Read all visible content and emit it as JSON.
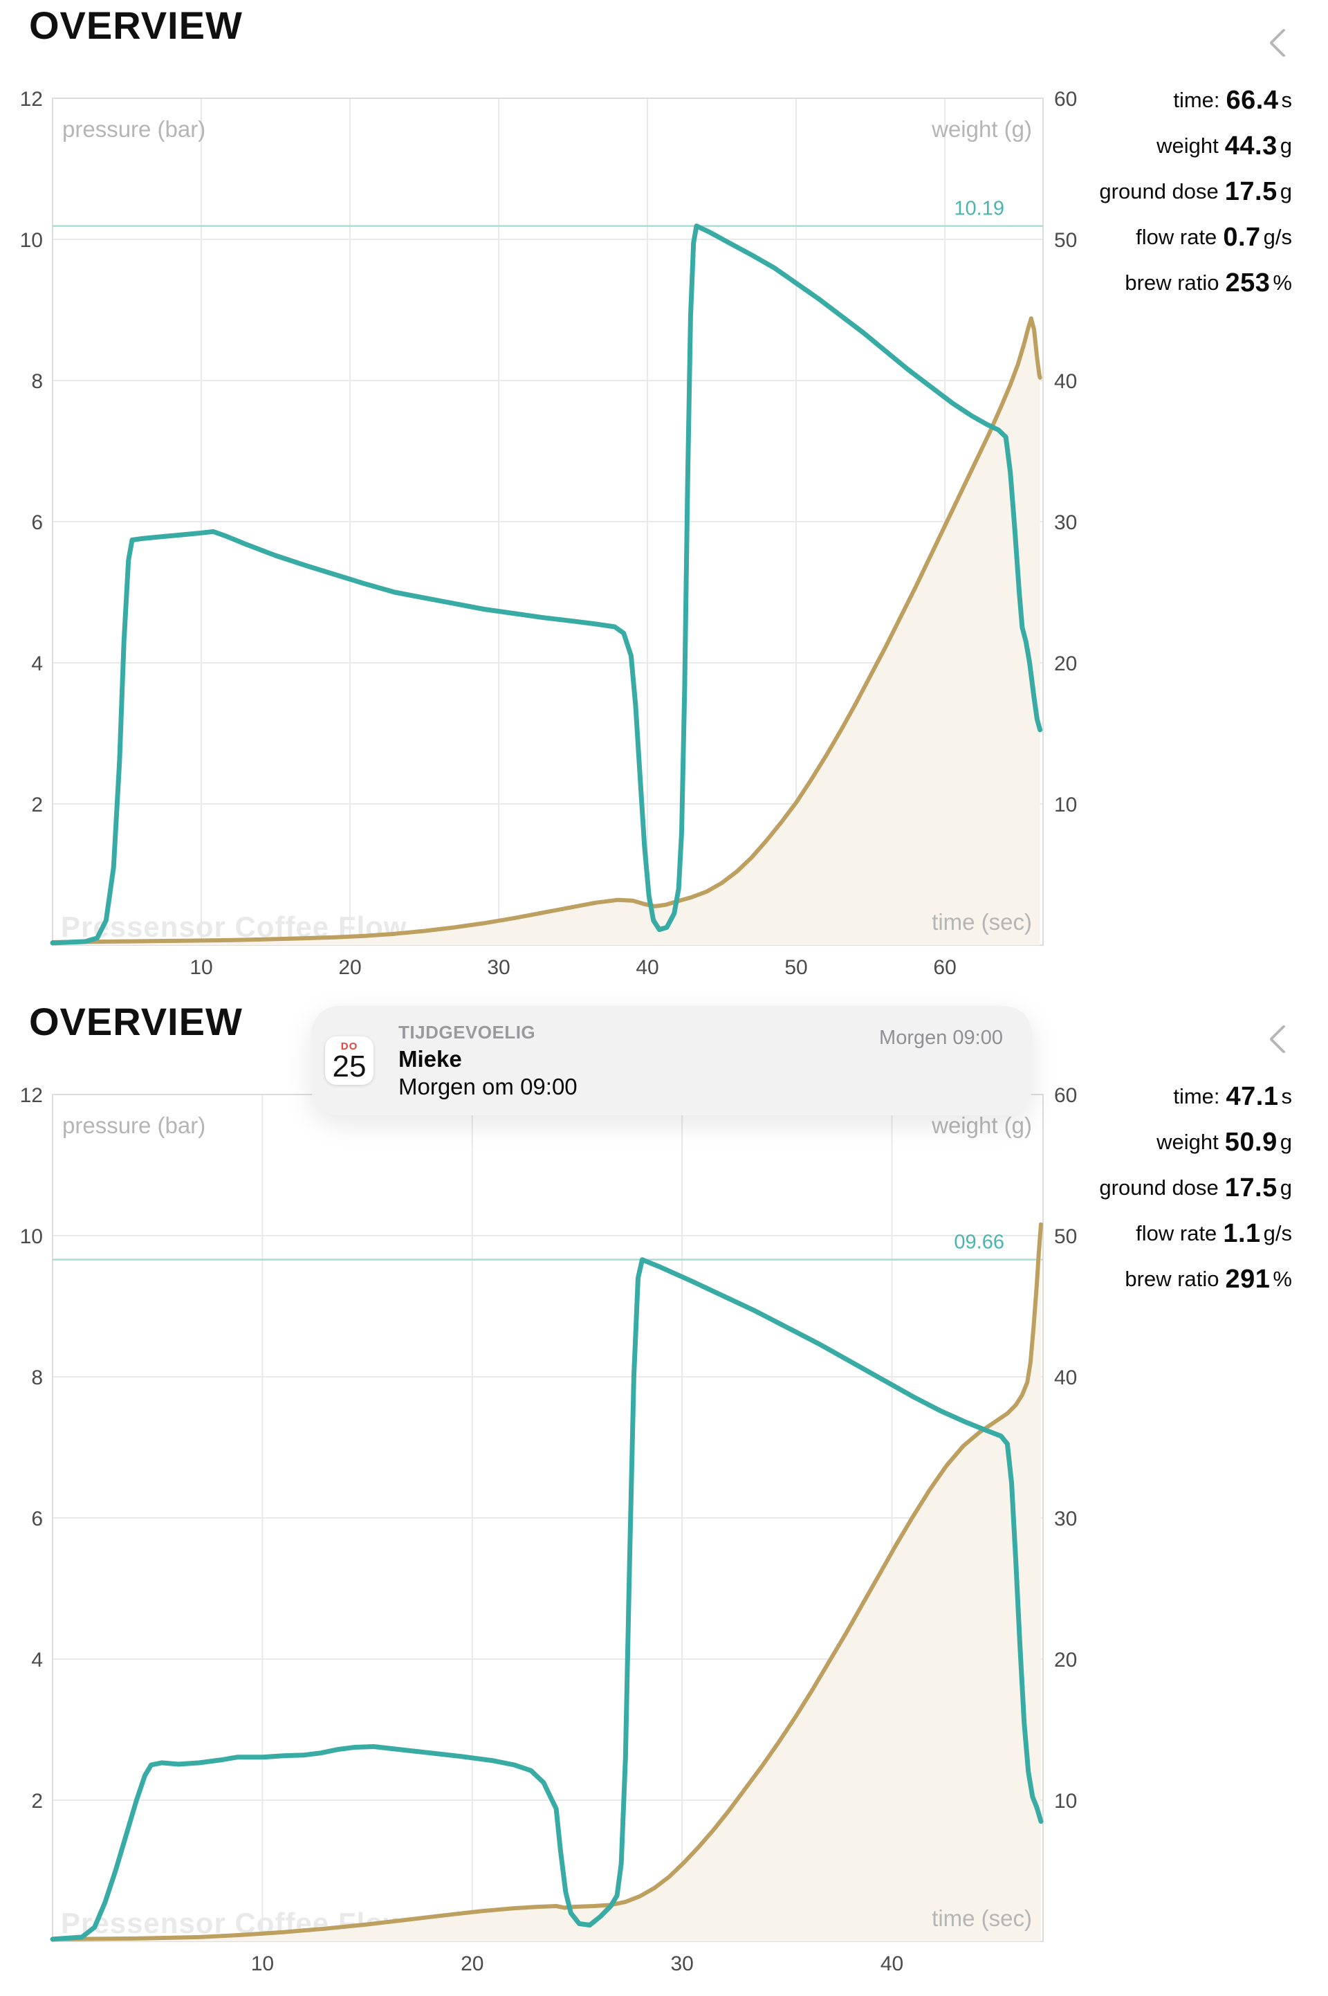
{
  "colors": {
    "teal": "#39aba5",
    "gold": "#bda05f",
    "gold_fill": "#f8f4ec",
    "annotation_line": "#a5ddd9",
    "annotation_text": "#49b5ae",
    "grid": "#e9e9e9",
    "border": "#dcdcdc",
    "tick_text": "#4b4b4b",
    "axis_label_text": "#b5b5b5",
    "watermark": "#e9e9e9"
  },
  "sections": [
    {
      "title": "OVERVIEW",
      "chevron_icon": "chevron-left",
      "stats": [
        {
          "label": "time:",
          "value": "66.4",
          "unit": "s"
        },
        {
          "label": "weight",
          "value": "44.3",
          "unit": "g"
        },
        {
          "label": "ground dose",
          "value": "17.5",
          "unit": "g"
        },
        {
          "label": "flow rate",
          "value": "0.7",
          "unit": "g/s"
        },
        {
          "label": "brew ratio",
          "value": "253",
          "unit": "%"
        }
      ]
    },
    {
      "title": "OVERVIEW",
      "chevron_icon": "chevron-left",
      "stats": [
        {
          "label": "time:",
          "value": "47.1",
          "unit": "s"
        },
        {
          "label": "weight",
          "value": "50.9",
          "unit": "g"
        },
        {
          "label": "ground dose",
          "value": "17.5",
          "unit": "g"
        },
        {
          "label": "flow rate",
          "value": "1.1",
          "unit": "g/s"
        },
        {
          "label": "brew ratio",
          "value": "291",
          "unit": "%"
        }
      ],
      "notification": {
        "day_abbr": "DO",
        "day_num": "25",
        "category": "TIJDGEVOELIG",
        "sender": "Mieke",
        "message": "Morgen om 09:00",
        "time": "Morgen 09:00"
      }
    }
  ],
  "chart_data": [
    {
      "type": "line",
      "title": "OVERVIEW",
      "xlabel": "time (sec)",
      "ylabel_left": "pressure (bar)",
      "ylabel_right": "weight (g)",
      "watermark": "Pressensor Coffee Flow",
      "x_max": 66.6,
      "ylim_left": [
        0,
        12
      ],
      "ylim_right": [
        0,
        60
      ],
      "x_ticks": [
        10,
        20,
        30,
        40,
        50,
        60
      ],
      "left_ticks": [
        2,
        4,
        6,
        8,
        10,
        12
      ],
      "right_ticks": [
        10,
        20,
        30,
        40,
        50,
        60
      ],
      "grid": true,
      "peak_annotation": {
        "label": "10.19",
        "value": 10.19
      },
      "series": [
        {
          "name": "pressure",
          "axis": "left",
          "points": [
            [
              0,
              0.03
            ],
            [
              2.2,
              0.05
            ],
            [
              3.0,
              0.1
            ],
            [
              3.6,
              0.35
            ],
            [
              4.1,
              1.1
            ],
            [
              4.5,
              2.6
            ],
            [
              4.8,
              4.3
            ],
            [
              5.1,
              5.45
            ],
            [
              5.35,
              5.74
            ],
            [
              6,
              5.76
            ],
            [
              7,
              5.78
            ],
            [
              8,
              5.8
            ],
            [
              9,
              5.82
            ],
            [
              10,
              5.84
            ],
            [
              10.8,
              5.86
            ],
            [
              11.6,
              5.8
            ],
            [
              13,
              5.68
            ],
            [
              15,
              5.52
            ],
            [
              17,
              5.38
            ],
            [
              19,
              5.25
            ],
            [
              21,
              5.12
            ],
            [
              23,
              5.0
            ],
            [
              25,
              4.92
            ],
            [
              27,
              4.84
            ],
            [
              29,
              4.76
            ],
            [
              31,
              4.7
            ],
            [
              33,
              4.64
            ],
            [
              35,
              4.59
            ],
            [
              36.5,
              4.55
            ],
            [
              37.8,
              4.51
            ],
            [
              38.4,
              4.42
            ],
            [
              38.9,
              4.1
            ],
            [
              39.2,
              3.4
            ],
            [
              39.5,
              2.4
            ],
            [
              39.8,
              1.4
            ],
            [
              40.1,
              0.7
            ],
            [
              40.4,
              0.35
            ],
            [
              40.8,
              0.22
            ],
            [
              41.3,
              0.25
            ],
            [
              41.8,
              0.45
            ],
            [
              42.1,
              0.8
            ],
            [
              42.3,
              1.6
            ],
            [
              42.5,
              3.6
            ],
            [
              42.7,
              6.5
            ],
            [
              42.9,
              8.9
            ],
            [
              43.1,
              9.95
            ],
            [
              43.3,
              10.19
            ],
            [
              44.2,
              10.1
            ],
            [
              45.5,
              9.95
            ],
            [
              47,
              9.78
            ],
            [
              48.5,
              9.6
            ],
            [
              50,
              9.38
            ],
            [
              51.5,
              9.16
            ],
            [
              53,
              8.92
            ],
            [
              54.5,
              8.68
            ],
            [
              56,
              8.42
            ],
            [
              57.5,
              8.16
            ],
            [
              59,
              7.92
            ],
            [
              60.5,
              7.68
            ],
            [
              61.8,
              7.5
            ],
            [
              62.8,
              7.38
            ],
            [
              63.6,
              7.3
            ],
            [
              64.1,
              7.2
            ],
            [
              64.4,
              6.7
            ],
            [
              64.7,
              5.9
            ],
            [
              65.0,
              5.0
            ],
            [
              65.2,
              4.5
            ],
            [
              65.45,
              4.3
            ],
            [
              65.7,
              4.0
            ],
            [
              66.0,
              3.5
            ],
            [
              66.2,
              3.2
            ],
            [
              66.4,
              3.05
            ]
          ]
        },
        {
          "name": "weight",
          "axis": "right",
          "points": [
            [
              0,
              0.2
            ],
            [
              4,
              0.25
            ],
            [
              8,
              0.3
            ],
            [
              12,
              0.35
            ],
            [
              16,
              0.45
            ],
            [
              19,
              0.55
            ],
            [
              21,
              0.65
            ],
            [
              23,
              0.8
            ],
            [
              25,
              1.0
            ],
            [
              27,
              1.25
            ],
            [
              29,
              1.55
            ],
            [
              31,
              1.9
            ],
            [
              33,
              2.3
            ],
            [
              35,
              2.7
            ],
            [
              36.5,
              3.0
            ],
            [
              38,
              3.2
            ],
            [
              39,
              3.15
            ],
            [
              39.8,
              2.9
            ],
            [
              40.5,
              2.75
            ],
            [
              41.2,
              2.85
            ],
            [
              42,
              3.1
            ],
            [
              43,
              3.4
            ],
            [
              44,
              3.8
            ],
            [
              45,
              4.4
            ],
            [
              46,
              5.2
            ],
            [
              47,
              6.2
            ],
            [
              48,
              7.4
            ],
            [
              49,
              8.7
            ],
            [
              50,
              10.1
            ],
            [
              51,
              11.7
            ],
            [
              52,
              13.4
            ],
            [
              53,
              15.2
            ],
            [
              54,
              17.1
            ],
            [
              55,
              19.1
            ],
            [
              56,
              21.1
            ],
            [
              57,
              23.2
            ],
            [
              58,
              25.3
            ],
            [
              59,
              27.5
            ],
            [
              60,
              29.7
            ],
            [
              61,
              31.9
            ],
            [
              62,
              34.1
            ],
            [
              63,
              36.3
            ],
            [
              63.8,
              38.2
            ],
            [
              64.4,
              39.7
            ],
            [
              64.9,
              41.1
            ],
            [
              65.3,
              42.5
            ],
            [
              65.6,
              43.7
            ],
            [
              65.8,
              44.4
            ],
            [
              66.0,
              43.6
            ],
            [
              66.2,
              41.6
            ],
            [
              66.35,
              40.4
            ],
            [
              66.4,
              40.2
            ]
          ]
        }
      ]
    },
    {
      "type": "line",
      "title": "OVERVIEW",
      "xlabel": "time (sec)",
      "ylabel_left": "pressure (bar)",
      "ylabel_right": "weight (g)",
      "watermark": "Pressensor Coffee Flow",
      "x_max": 47.2,
      "ylim_left": [
        0,
        12
      ],
      "ylim_right": [
        0,
        60
      ],
      "x_ticks": [
        10,
        20,
        30,
        40
      ],
      "left_ticks": [
        2,
        4,
        6,
        8,
        10,
        12
      ],
      "right_ticks": [
        10,
        20,
        30,
        40,
        50,
        60
      ],
      "grid": true,
      "peak_annotation": {
        "label": "09.66",
        "value": 9.66
      },
      "series": [
        {
          "name": "pressure",
          "axis": "left",
          "points": [
            [
              0,
              0.03
            ],
            [
              1.4,
              0.06
            ],
            [
              2.0,
              0.2
            ],
            [
              2.5,
              0.55
            ],
            [
              3.0,
              1.0
            ],
            [
              3.5,
              1.5
            ],
            [
              4.0,
              2.0
            ],
            [
              4.4,
              2.35
            ],
            [
              4.7,
              2.5
            ],
            [
              5.2,
              2.53
            ],
            [
              6,
              2.51
            ],
            [
              7,
              2.53
            ],
            [
              8,
              2.57
            ],
            [
              8.8,
              2.61
            ],
            [
              10,
              2.61
            ],
            [
              11,
              2.63
            ],
            [
              12,
              2.64
            ],
            [
              12.8,
              2.67
            ],
            [
              13.6,
              2.72
            ],
            [
              14.4,
              2.75
            ],
            [
              15.3,
              2.76
            ],
            [
              16.5,
              2.72
            ],
            [
              18,
              2.67
            ],
            [
              19.5,
              2.62
            ],
            [
              21,
              2.56
            ],
            [
              22,
              2.5
            ],
            [
              22.8,
              2.42
            ],
            [
              23.4,
              2.25
            ],
            [
              23.8,
              2.0
            ],
            [
              24.0,
              1.88
            ],
            [
              24.2,
              1.3
            ],
            [
              24.45,
              0.7
            ],
            [
              24.7,
              0.4
            ],
            [
              25.1,
              0.25
            ],
            [
              25.6,
              0.23
            ],
            [
              26.1,
              0.35
            ],
            [
              26.6,
              0.5
            ],
            [
              26.9,
              0.65
            ],
            [
              27.1,
              1.1
            ],
            [
              27.3,
              2.6
            ],
            [
              27.5,
              5.4
            ],
            [
              27.7,
              8.0
            ],
            [
              27.9,
              9.4
            ],
            [
              28.1,
              9.66
            ],
            [
              29,
              9.55
            ],
            [
              30.5,
              9.35
            ],
            [
              32,
              9.14
            ],
            [
              33.5,
              8.93
            ],
            [
              35,
              8.7
            ],
            [
              36.5,
              8.47
            ],
            [
              38,
              8.22
            ],
            [
              39.5,
              7.97
            ],
            [
              41,
              7.72
            ],
            [
              42.3,
              7.52
            ],
            [
              43.5,
              7.36
            ],
            [
              44.5,
              7.24
            ],
            [
              45.2,
              7.16
            ],
            [
              45.5,
              7.05
            ],
            [
              45.7,
              6.5
            ],
            [
              45.9,
              5.4
            ],
            [
              46.1,
              4.2
            ],
            [
              46.3,
              3.1
            ],
            [
              46.5,
              2.4
            ],
            [
              46.7,
              2.05
            ],
            [
              46.9,
              1.9
            ],
            [
              47.1,
              1.7
            ]
          ]
        },
        {
          "name": "weight",
          "axis": "right",
          "points": [
            [
              0,
              0.15
            ],
            [
              4,
              0.2
            ],
            [
              7,
              0.3
            ],
            [
              9,
              0.45
            ],
            [
              11,
              0.65
            ],
            [
              13,
              0.9
            ],
            [
              15,
              1.2
            ],
            [
              17,
              1.55
            ],
            [
              19,
              1.9
            ],
            [
              20.5,
              2.15
            ],
            [
              22,
              2.35
            ],
            [
              23.2,
              2.45
            ],
            [
              24.0,
              2.5
            ],
            [
              24.4,
              2.38
            ],
            [
              24.9,
              2.45
            ],
            [
              25.8,
              2.5
            ],
            [
              26.6,
              2.58
            ],
            [
              27.3,
              2.8
            ],
            [
              28,
              3.2
            ],
            [
              28.7,
              3.8
            ],
            [
              29.4,
              4.6
            ],
            [
              30.1,
              5.6
            ],
            [
              30.8,
              6.7
            ],
            [
              31.5,
              7.9
            ],
            [
              32.2,
              9.2
            ],
            [
              33,
              10.8
            ],
            [
              33.8,
              12.4
            ],
            [
              34.6,
              14.1
            ],
            [
              35.4,
              15.9
            ],
            [
              36.2,
              17.8
            ],
            [
              37,
              19.8
            ],
            [
              37.8,
              21.8
            ],
            [
              38.6,
              23.9
            ],
            [
              39.4,
              26.0
            ],
            [
              40.2,
              28.1
            ],
            [
              41,
              30.1
            ],
            [
              41.8,
              32.0
            ],
            [
              42.6,
              33.7
            ],
            [
              43.4,
              35.1
            ],
            [
              44.2,
              36.1
            ],
            [
              44.9,
              36.8
            ],
            [
              45.5,
              37.4
            ],
            [
              45.9,
              38.0
            ],
            [
              46.2,
              38.7
            ],
            [
              46.45,
              39.6
            ],
            [
              46.6,
              41.0
            ],
            [
              46.75,
              43.5
            ],
            [
              46.9,
              46.5
            ],
            [
              47.0,
              48.8
            ],
            [
              47.1,
              50.8
            ]
          ]
        }
      ]
    }
  ]
}
